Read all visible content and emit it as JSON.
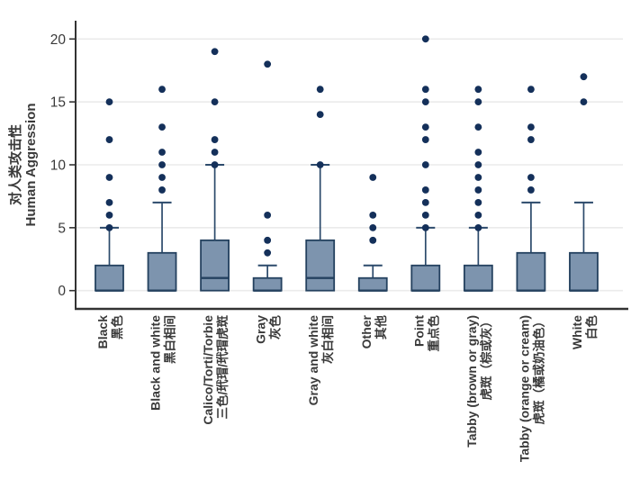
{
  "chart_data": {
    "type": "box",
    "title": "",
    "ylabel_zh": "对人类攻击性",
    "ylabel_en": "Human Aggression",
    "ylim": [
      -1.4,
      21.4
    ],
    "yticks": [
      0,
      5,
      10,
      15,
      20
    ],
    "grid": true,
    "legend": "none",
    "categories": [
      {
        "en": "Black",
        "zh": "黑色"
      },
      {
        "en": "Black and white",
        "zh": "黑白相间"
      },
      {
        "en": "Calico/Torti/Torbie",
        "zh": "三色/玳瑁/玳瑁虎斑"
      },
      {
        "en": "Gray",
        "zh": "灰色"
      },
      {
        "en": "Gray and white",
        "zh": "灰白相间"
      },
      {
        "en": "Other",
        "zh": "其他"
      },
      {
        "en": "Point",
        "zh": "重点色"
      },
      {
        "en": "Tabby (brown or gray)",
        "zh": "虎斑（棕或灰）"
      },
      {
        "en": "Tabby (orange or cream)",
        "zh": "虎斑（橘或奶油色）"
      },
      {
        "en": "White",
        "zh": "白色"
      }
    ],
    "series": [
      {
        "category": "Black",
        "q1": 0,
        "median": 0,
        "q3": 2,
        "whisker_low": 0,
        "whisker_high": 5,
        "outliers": [
          5,
          6,
          7,
          9,
          12,
          15
        ]
      },
      {
        "category": "Black and white",
        "q1": 0,
        "median": 0,
        "q3": 3,
        "whisker_low": 0,
        "whisker_high": 7,
        "outliers": [
          8,
          9,
          10,
          11,
          13,
          16
        ]
      },
      {
        "category": "Calico/Torti/Torbie",
        "q1": 0,
        "median": 1,
        "q3": 4,
        "whisker_low": 0,
        "whisker_high": 10,
        "outliers": [
          10,
          11,
          12,
          15,
          19
        ]
      },
      {
        "category": "Gray",
        "q1": 0,
        "median": 0,
        "q3": 1,
        "whisker_low": 0,
        "whisker_high": 2,
        "outliers": [
          3,
          4,
          6,
          18
        ]
      },
      {
        "category": "Gray and white",
        "q1": 0,
        "median": 1,
        "q3": 4,
        "whisker_low": 0,
        "whisker_high": 10,
        "outliers": [
          10,
          14,
          16
        ]
      },
      {
        "category": "Other",
        "q1": 0,
        "median": 0,
        "q3": 1,
        "whisker_low": 0,
        "whisker_high": 2,
        "outliers": [
          4,
          5,
          6,
          9
        ]
      },
      {
        "category": "Point",
        "q1": 0,
        "median": 0,
        "q3": 2,
        "whisker_low": 0,
        "whisker_high": 5,
        "outliers": [
          5,
          6,
          7,
          8,
          10,
          12,
          13,
          15,
          16,
          20
        ]
      },
      {
        "category": "Tabby (brown or gray)",
        "q1": 0,
        "median": 0,
        "q3": 2,
        "whisker_low": 0,
        "whisker_high": 5,
        "outliers": [
          5,
          6,
          7,
          8,
          9,
          10,
          11,
          13,
          15,
          16
        ]
      },
      {
        "category": "Tabby (orange or cream)",
        "q1": 0,
        "median": 0,
        "q3": 3,
        "whisker_low": 0,
        "whisker_high": 7,
        "outliers": [
          8,
          9,
          12,
          13,
          16
        ]
      },
      {
        "category": "White",
        "q1": 0,
        "median": 0,
        "q3": 3,
        "whisker_low": 0,
        "whisker_high": 7,
        "outliers": [
          15,
          17
        ]
      }
    ],
    "colors": {
      "box_fill": "#7D94AE",
      "box_stroke": "#24415F",
      "median": "#24415F",
      "whisker": "#2C4A6B",
      "outlier": "#14305A",
      "gridline": "#EBEBEB",
      "axis": "#333333",
      "text": "#3A3A3A"
    }
  }
}
